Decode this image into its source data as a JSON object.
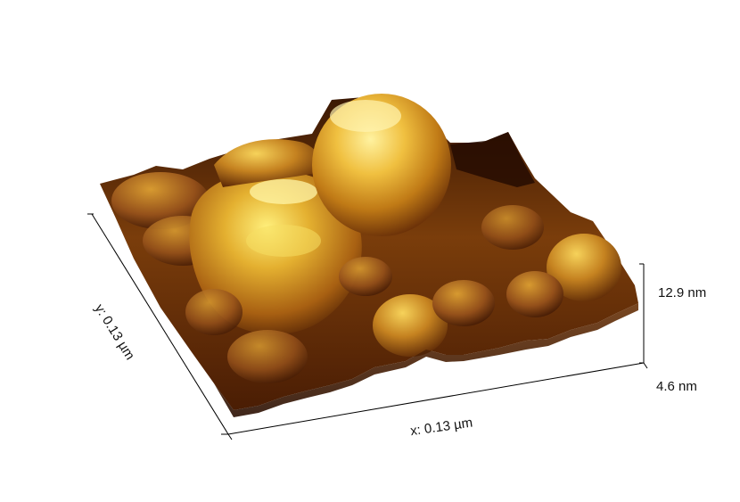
{
  "axes": {
    "x_label": "x: 0.13 µm",
    "y_label": "y: 0.13 µm",
    "z_max_label": "12.9 nm",
    "z_min_label": "4.6 nm"
  },
  "colormap": {
    "low": "#2a0f02",
    "mid": "#8f4f10",
    "high": "#ffe66b",
    "peak": "#fff2a0"
  }
}
